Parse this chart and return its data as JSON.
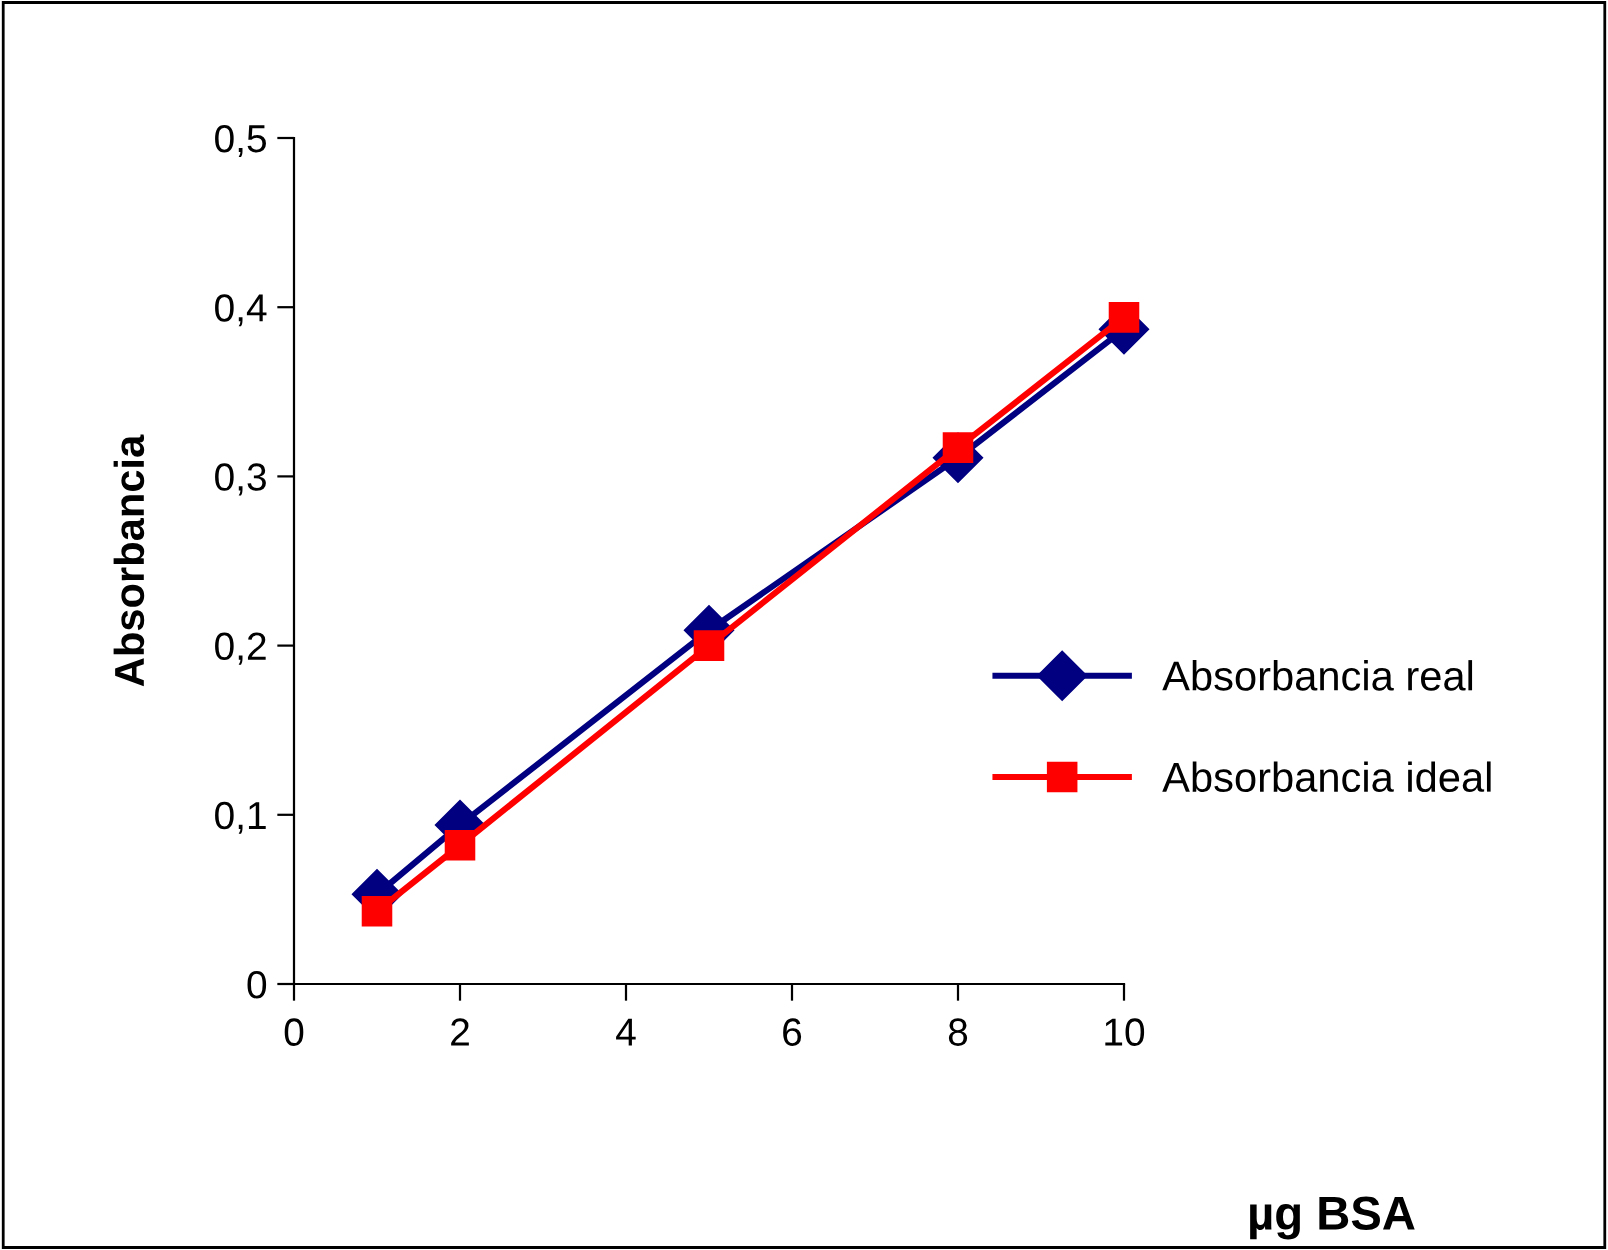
{
  "chart_data": {
    "type": "line",
    "xlabel": "µg BSA",
    "ylabel": "Absorbancia",
    "x": [
      1,
      2,
      5,
      8,
      10
    ],
    "series": [
      {
        "name": "Absorbancia real",
        "color": "#000080",
        "marker": "diamond",
        "values": [
          0.053,
          0.094,
          0.209,
          0.311,
          0.387
        ]
      },
      {
        "name": "Absorbancia ideal",
        "color": "#ff0000",
        "marker": "square",
        "values": [
          0.043,
          0.082,
          0.2,
          0.317,
          0.394
        ]
      }
    ],
    "xlim": [
      0,
      10
    ],
    "ylim": [
      0,
      0.5
    ],
    "xticks": [
      0,
      2,
      4,
      6,
      8,
      10
    ],
    "yticks": [
      {
        "value": 0,
        "label": "0"
      },
      {
        "value": 0.1,
        "label": "0,1"
      },
      {
        "value": 0.2,
        "label": "0,2"
      },
      {
        "value": 0.3,
        "label": "0,3"
      },
      {
        "value": 0.4,
        "label": "0,4"
      },
      {
        "value": 0.5,
        "label": "0,5"
      }
    ],
    "grid": false,
    "legend": "right",
    "line_style": "solid"
  }
}
